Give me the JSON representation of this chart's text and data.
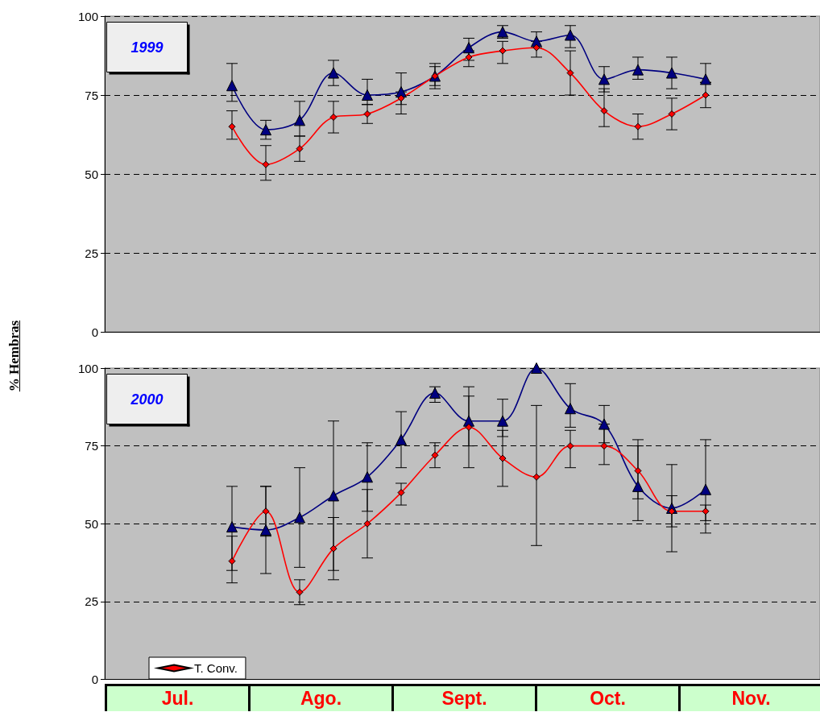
{
  "chart_data": [
    {
      "type": "line",
      "annotations": [
        "1999"
      ],
      "ylabel": "% Hembras",
      "ylim": [
        0,
        100
      ],
      "yticks": [
        0,
        25,
        50,
        75,
        100
      ],
      "tick_labels": "y",
      "grid": "y",
      "legend": false,
      "categories": [
        null,
        null,
        null,
        null,
        null,
        null,
        null,
        null,
        null,
        null,
        null,
        null,
        null,
        null,
        null
      ],
      "series": [
        {
          "color": "#000080",
          "marker": "triangle",
          "values": [
            78,
            64,
            67,
            82,
            75,
            76,
            81,
            90,
            95,
            92,
            94,
            80,
            83,
            82,
            80
          ],
          "errors": [
            [
              73,
              85
            ],
            [
              61,
              67
            ],
            [
              62,
              73
            ],
            [
              78,
              86
            ],
            [
              72,
              80
            ],
            [
              72,
              82
            ],
            [
              78,
              85
            ],
            [
              86,
              93
            ],
            [
              93,
              97
            ],
            [
              90,
              95
            ],
            [
              90,
              97
            ],
            [
              76,
              84
            ],
            [
              80,
              87
            ],
            [
              77,
              87
            ],
            [
              79,
              85
            ]
          ]
        },
        {
          "color": "#ff0000",
          "marker": "diamond",
          "values": [
            65,
            53,
            58,
            68,
            69,
            74,
            81,
            87,
            89,
            90,
            82,
            70,
            65,
            69,
            75
          ],
          "errors": [
            [
              61,
              70
            ],
            [
              48,
              59
            ],
            [
              54,
              62
            ],
            [
              63,
              73
            ],
            [
              66,
              72
            ],
            [
              69,
              76
            ],
            [
              77,
              84
            ],
            [
              84,
              89
            ],
            [
              85,
              92
            ],
            [
              87,
              92
            ],
            [
              75,
              89
            ],
            [
              65,
              77
            ],
            [
              61,
              69
            ],
            [
              64,
              74
            ],
            [
              71,
              79
            ]
          ]
        }
      ]
    },
    {
      "type": "line",
      "annotations": [
        "2000",
        "Jul.",
        "Ago.",
        "Sept.",
        "Oct.",
        "Nov."
      ],
      "ylim": [
        0,
        100
      ],
      "yticks": [
        0,
        25,
        50,
        75,
        100
      ],
      "tick_labels": "y",
      "grid": "y",
      "legend": "bottom left",
      "categories": [
        null,
        null,
        null,
        null,
        null,
        null,
        null,
        null,
        null,
        null,
        null,
        null,
        null,
        null,
        null
      ],
      "series": [
        {
          "color": "#000080",
          "marker": "triangle",
          "values": [
            49,
            48,
            52,
            59,
            65,
            77,
            92,
            83,
            83,
            100,
            87,
            82,
            62,
            55,
            61
          ],
          "errors": [
            [
              35,
              62
            ],
            [
              34,
              62
            ],
            [
              36,
              68
            ],
            [
              35,
              83
            ],
            [
              54,
              76
            ],
            [
              68,
              86
            ],
            [
              89,
              94
            ],
            [
              75,
              91
            ],
            [
              78,
              90
            ],
            null,
            [
              81,
              95
            ],
            [
              76,
              88
            ],
            [
              51,
              75
            ],
            [
              49,
              59
            ],
            [
              51,
              77
            ]
          ]
        },
        {
          "name": "T. Conv.",
          "color": "#ff0000",
          "marker": "diamond",
          "values": [
            38,
            54,
            28,
            42,
            50,
            60,
            72,
            81,
            71,
            65,
            75,
            75,
            67,
            54,
            54
          ],
          "errors": [
            [
              31,
              46
            ],
            [
              46,
              62
            ],
            [
              24,
              32
            ],
            [
              32,
              52
            ],
            [
              39,
              61
            ],
            [
              56,
              63
            ],
            [
              68,
              76
            ],
            [
              68,
              94
            ],
            [
              62,
              80
            ],
            [
              43,
              88
            ],
            [
              68,
              80
            ],
            [
              69,
              82
            ],
            [
              58,
              77
            ],
            [
              41,
              69
            ],
            [
              47,
              56
            ]
          ]
        }
      ]
    }
  ]
}
